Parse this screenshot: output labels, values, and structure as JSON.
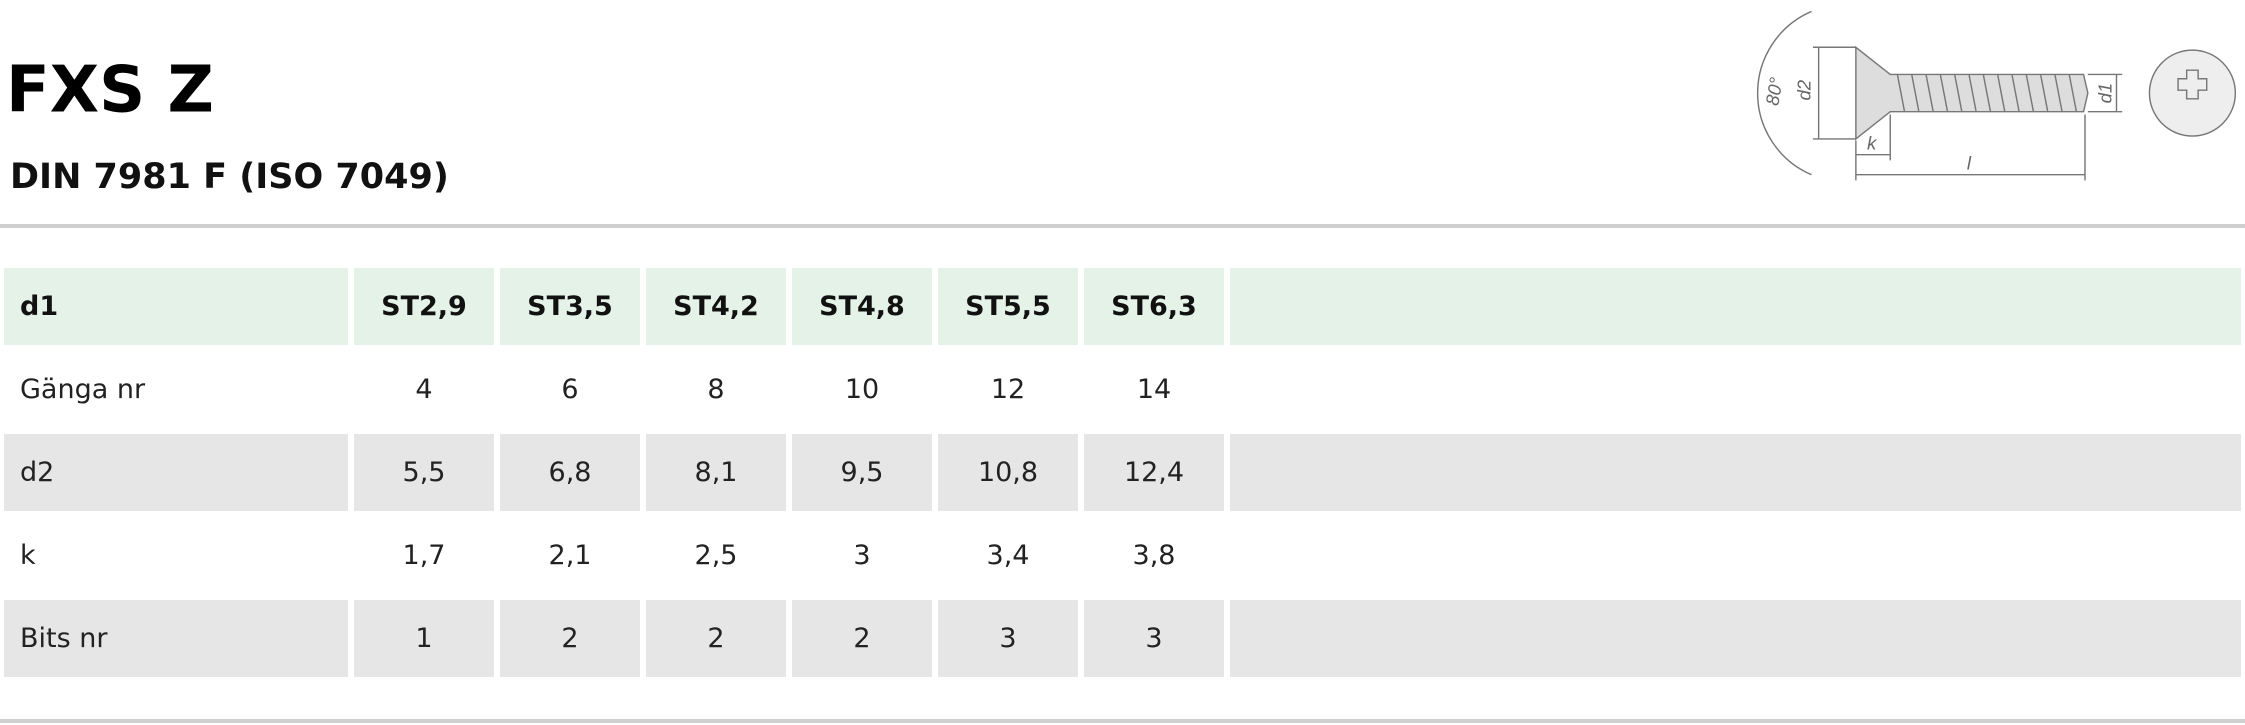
{
  "header": {
    "title": "FXS Z",
    "subtitle": "DIN 7981 F (ISO 7049)"
  },
  "drawing": {
    "labels": [
      "80°",
      "d2",
      "d1",
      "k",
      "l"
    ]
  },
  "table": {
    "header": [
      "d1",
      "ST2,9",
      "ST3,5",
      "ST4,2",
      "ST4,8",
      "ST5,5",
      "ST6,3"
    ],
    "rows": [
      [
        "Gänga nr",
        "4",
        "6",
        "8",
        "10",
        "12",
        "14"
      ],
      [
        "d2",
        "5,5",
        "6,8",
        "8,1",
        "9,5",
        "10,8",
        "12,4"
      ],
      [
        "k",
        "1,7",
        "2,1",
        "2,5",
        "3",
        "3,4",
        "3,8"
      ],
      [
        "Bits nr",
        "1",
        "2",
        "2",
        "2",
        "3",
        "3"
      ]
    ]
  }
}
